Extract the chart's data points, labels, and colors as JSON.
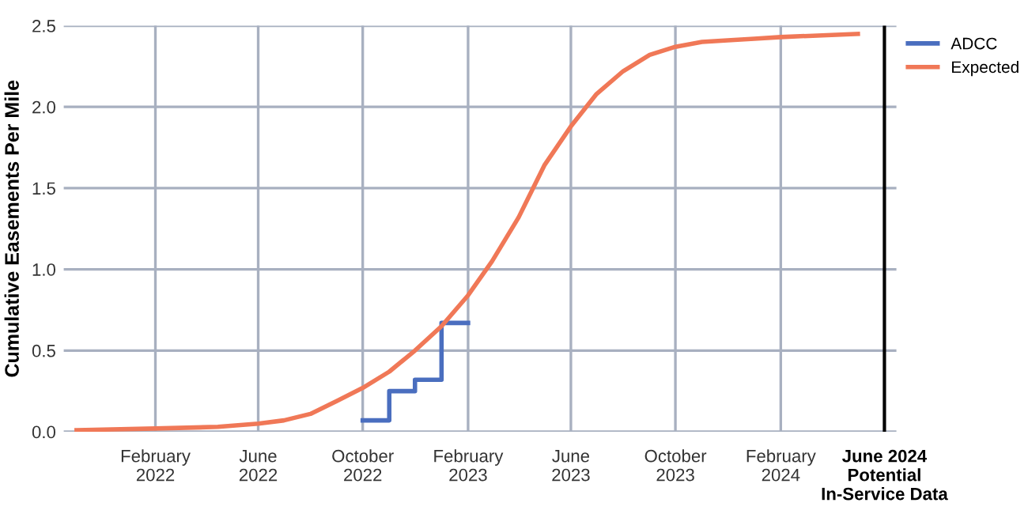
{
  "chart_data": {
    "type": "line",
    "ylabel": "Cumulative Easements Per Mile",
    "xlim": [
      "2021-10-17",
      "2024-06-15"
    ],
    "ylim": [
      0,
      2.5
    ],
    "yticks": [
      {
        "value": 0,
        "label": "0.0"
      },
      0.5,
      {
        "value": 1,
        "label": "1.0"
      },
      1.5,
      {
        "value": 2,
        "label": "2.0"
      },
      2.5
    ],
    "xticks": [
      {
        "value": "2022-02-01",
        "label": "February\n2022"
      },
      {
        "value": "2022-06-01",
        "label": "June\n2022"
      },
      {
        "value": "2022-10-01",
        "label": "October\n2022"
      },
      {
        "value": "2023-02-01",
        "label": "February\n2023"
      },
      {
        "value": "2023-06-01",
        "label": "June\n2023"
      },
      {
        "value": "2023-10-01",
        "label": "October\n2023"
      },
      {
        "value": "2024-02-01",
        "label": "February\n2024"
      }
    ],
    "series": [
      {
        "name": "ADCC",
        "type": "step",
        "color": "#4a6ebf",
        "x": [
          "2022-10-01",
          "2022-11-01",
          "2022-12-01",
          "2023-01-01",
          "2023-02-01"
        ],
        "values": [
          0.07,
          0.25,
          0.32,
          0.67,
          0.67
        ]
      },
      {
        "name": "Expected",
        "color": "#f07857",
        "x": [
          "2021-11-01",
          "2022-02-01",
          "2022-04-15",
          "2022-06-01",
          "2022-07-01",
          "2022-08-01",
          "2022-09-01",
          "2022-10-01",
          "2022-11-01",
          "2022-12-01",
          "2023-01-01",
          "2023-02-01",
          "2023-03-01",
          "2023-04-01",
          "2023-05-01",
          "2023-06-01",
          "2023-07-01",
          "2023-08-01",
          "2023-09-01",
          "2023-10-01",
          "2023-11-01",
          "2023-12-01",
          "2024-01-01",
          "2024-02-01",
          "2024-05-01"
        ],
        "values": [
          0.01,
          0.02,
          0.03,
          0.05,
          0.07,
          0.11,
          0.19,
          0.27,
          0.37,
          0.5,
          0.65,
          0.84,
          1.05,
          1.32,
          1.64,
          1.88,
          2.08,
          2.22,
          2.32,
          2.37,
          2.4,
          2.41,
          2.42,
          2.43,
          2.45
        ]
      }
    ],
    "ref_lines": [
      {
        "axis": "x",
        "value": "2024-06-01",
        "label": "June 2024\nPotential\nIn-Service Data",
        "color": "#000000"
      }
    ],
    "grid": true,
    "legend": "top right"
  }
}
